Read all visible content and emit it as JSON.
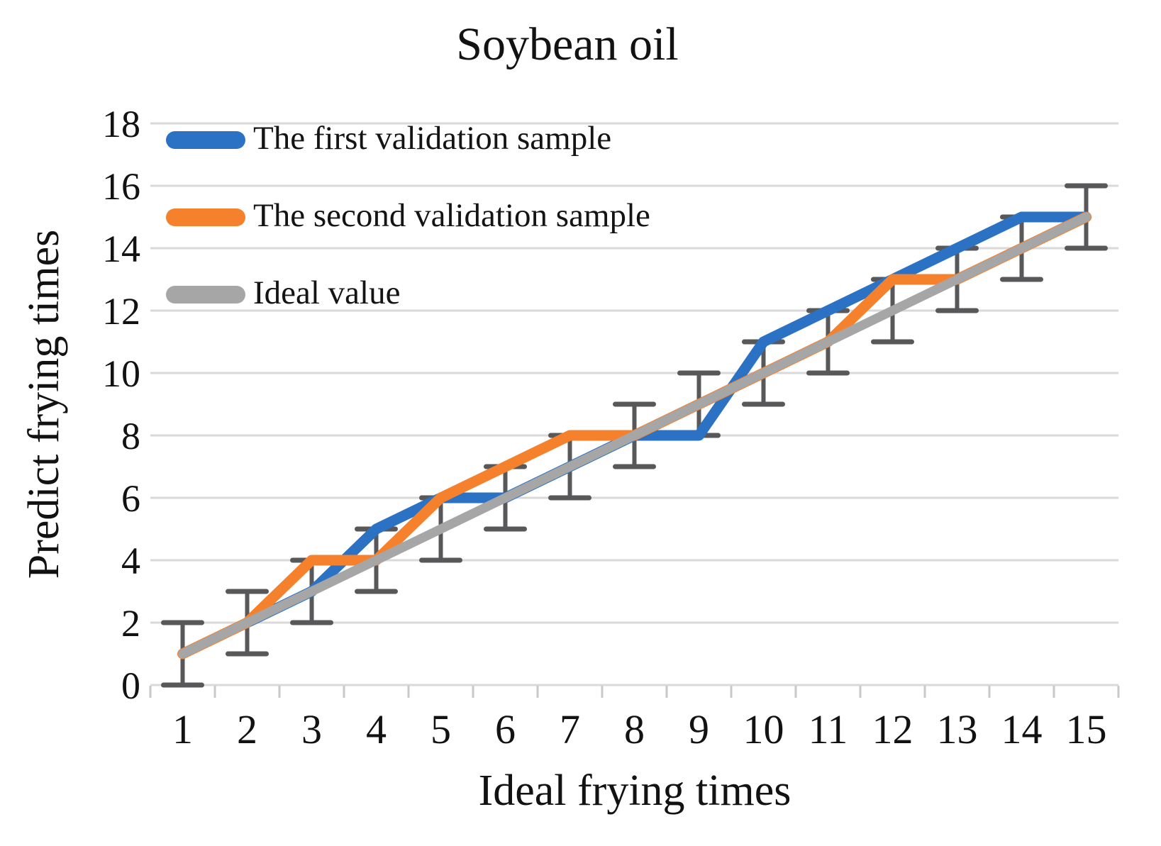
{
  "title": "Soybean oil",
  "axes": {
    "x_title": "Ideal frying times",
    "y_title": "Predict frying times"
  },
  "colors": {
    "grid": "#D9D9D9",
    "axis_tick": "#C9C9C9",
    "error_bar": "#58585A",
    "text": "#121212"
  },
  "chart_data": {
    "type": "line",
    "title": "Soybean oil",
    "xlabel": "Ideal frying times",
    "ylabel": "Predict frying times",
    "x_ticks": [
      1,
      2,
      3,
      4,
      5,
      6,
      7,
      8,
      9,
      10,
      11,
      12,
      13,
      14,
      15
    ],
    "y_ticks": [
      0,
      2,
      4,
      6,
      8,
      10,
      12,
      14,
      16,
      18
    ],
    "ylim": [
      0,
      18
    ],
    "grid": "horizontal-only",
    "legend_position": "inside-top-left",
    "series": [
      {
        "name": "The first validation sample",
        "color": "#2B72C5",
        "points": [
          [
            2,
            2
          ],
          [
            3,
            3
          ],
          [
            4,
            5
          ],
          [
            5,
            6
          ],
          [
            6,
            6
          ],
          [
            7,
            7
          ],
          [
            8,
            8
          ],
          [
            9,
            8
          ],
          [
            10,
            11
          ],
          [
            11,
            12
          ],
          [
            12,
            13
          ],
          [
            13,
            14
          ],
          [
            14,
            15
          ],
          [
            15,
            15
          ]
        ]
      },
      {
        "name": "The second validation sample",
        "color": "#F6812D",
        "points": [
          [
            1,
            1
          ],
          [
            2,
            2
          ],
          [
            3,
            4
          ],
          [
            4,
            4
          ],
          [
            5,
            6
          ],
          [
            6,
            7
          ],
          [
            7,
            8
          ],
          [
            8,
            8
          ],
          [
            9,
            9
          ],
          [
            10,
            10
          ],
          [
            11,
            11
          ],
          [
            12,
            13
          ],
          [
            13,
            13
          ],
          [
            14,
            14
          ],
          [
            15,
            15
          ]
        ]
      },
      {
        "name": "Ideal value",
        "color": "#A6A6A6",
        "points": [
          [
            1,
            1
          ],
          [
            2,
            2
          ],
          [
            3,
            3
          ],
          [
            4,
            4
          ],
          [
            5,
            5
          ],
          [
            6,
            6
          ],
          [
            7,
            7
          ],
          [
            8,
            8
          ],
          [
            9,
            9
          ],
          [
            10,
            10
          ],
          [
            11,
            11
          ],
          [
            12,
            12
          ],
          [
            13,
            13
          ],
          [
            14,
            14
          ],
          [
            15,
            15
          ]
        ]
      }
    ],
    "error_bars": {
      "attached_to": "Ideal value",
      "color": "#58585A",
      "plus": 1,
      "minus": 1,
      "points": [
        {
          "x": 1,
          "min": 0,
          "max": 2
        },
        {
          "x": 2,
          "min": 1,
          "max": 3
        },
        {
          "x": 3,
          "min": 2,
          "max": 4
        },
        {
          "x": 4,
          "min": 3,
          "max": 5
        },
        {
          "x": 5,
          "min": 4,
          "max": 6
        },
        {
          "x": 6,
          "min": 5,
          "max": 7
        },
        {
          "x": 7,
          "min": 6,
          "max": 8
        },
        {
          "x": 8,
          "min": 7,
          "max": 9
        },
        {
          "x": 9,
          "min": 8,
          "max": 10
        },
        {
          "x": 10,
          "min": 9,
          "max": 11
        },
        {
          "x": 11,
          "min": 10,
          "max": 12
        },
        {
          "x": 12,
          "min": 11,
          "max": 13
        },
        {
          "x": 13,
          "min": 12,
          "max": 14
        },
        {
          "x": 14,
          "min": 13,
          "max": 15
        },
        {
          "x": 15,
          "min": 14,
          "max": 16
        }
      ]
    }
  }
}
